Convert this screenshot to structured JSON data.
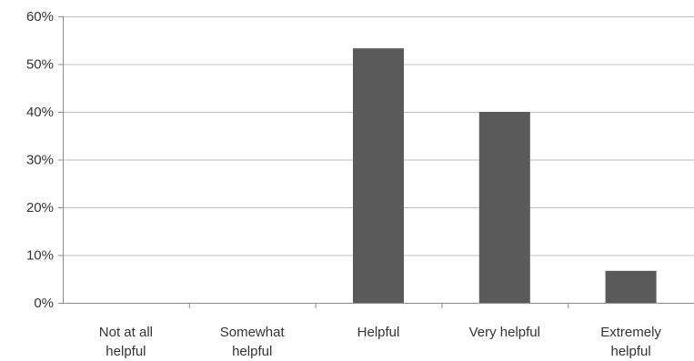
{
  "chart_data": {
    "type": "bar",
    "categories": [
      [
        "Not at all",
        "helpful"
      ],
      [
        "Somewhat",
        "helpful"
      ],
      [
        "Helpful"
      ],
      [
        "Very helpful"
      ],
      [
        "Extremely",
        "helpful"
      ]
    ],
    "values": [
      0,
      0,
      53.3,
      40,
      6.7
    ],
    "y_ticks": [
      "0%",
      "10%",
      "20%",
      "30%",
      "40%",
      "50%",
      "60%"
    ],
    "ylim": [
      0,
      60
    ],
    "grid": true,
    "legend": "none",
    "colors": {
      "bar": "#5a5a5a",
      "grid": "#bfbfbf",
      "axis": "#8c8c8c"
    }
  }
}
